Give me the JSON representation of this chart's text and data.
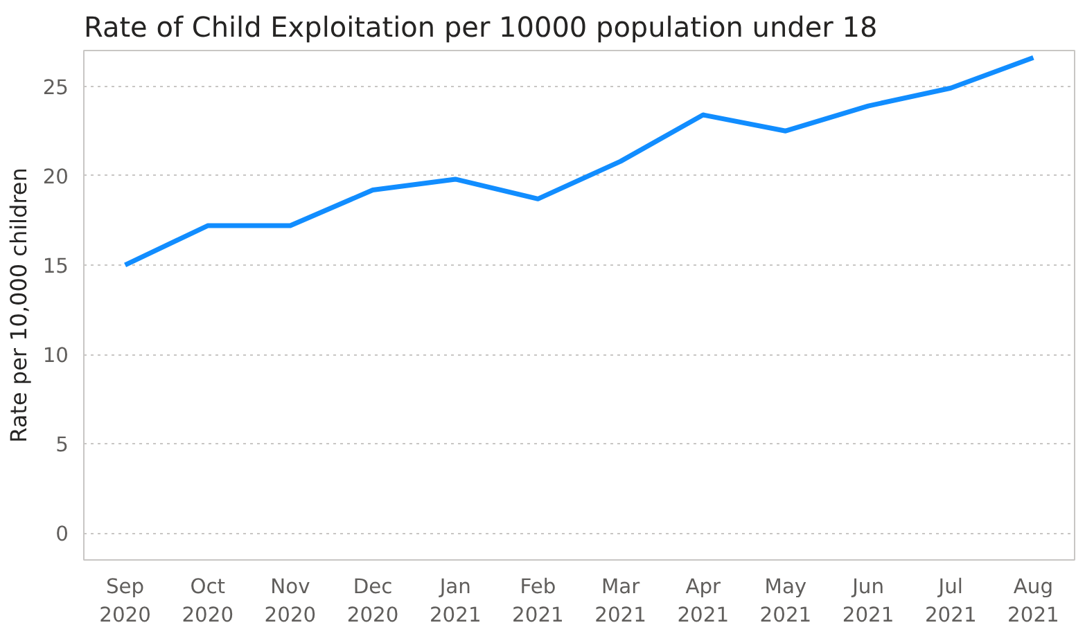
{
  "chart_data": {
    "type": "line",
    "title": "Rate of Child Exploitation per 10000 population under 18",
    "ylabel": "Rate per 10,000 children",
    "categories": [
      "Sep\n2020",
      "Oct\n2020",
      "Nov\n2020",
      "Dec\n2020",
      "Jan\n2021",
      "Feb\n2021",
      "Mar\n2021",
      "Apr\n2021",
      "May\n2021",
      "Jun\n2021",
      "Jul\n2021",
      "Aug\n2021"
    ],
    "series": [
      {
        "color": "#118dff",
        "values": [
          15.0,
          17.2,
          17.2,
          19.2,
          19.8,
          18.7,
          20.8,
          23.4,
          22.5,
          23.9,
          24.9,
          26.6
        ]
      }
    ],
    "ylim": [
      -1.5,
      27
    ],
    "yticks": [
      0,
      5,
      10,
      15,
      20,
      25
    ],
    "grid": "y",
    "line_style": "solid"
  }
}
